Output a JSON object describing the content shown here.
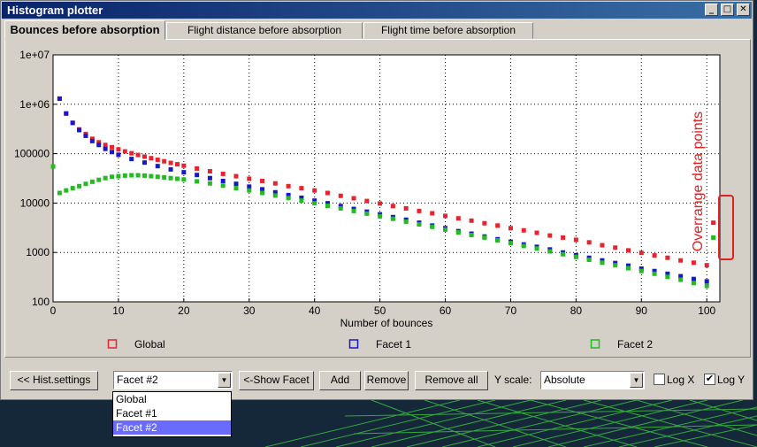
{
  "window": {
    "title": "Histogram plotter",
    "minimize_glyph": "_",
    "maximize_glyph": "□",
    "close_glyph": "✕"
  },
  "tabs": [
    {
      "label": "Bounces before absorption",
      "active": true
    },
    {
      "label": "Flight distance before absorption",
      "active": false
    },
    {
      "label": "Flight time before absorption",
      "active": false
    }
  ],
  "chart_data": {
    "type": "scatter",
    "xlabel": "Number of bounces",
    "ylabel": "",
    "xlim": [
      0,
      102
    ],
    "ylim": [
      100,
      10000000
    ],
    "yscale": "log",
    "grid": true,
    "x_ticks": [
      0,
      10,
      20,
      30,
      40,
      50,
      60,
      70,
      80,
      90,
      100
    ],
    "y_ticks": [
      100,
      1000,
      10000,
      100000,
      1000000,
      10000000
    ],
    "y_tick_labels": [
      "100",
      "1000",
      "10000",
      "100000",
      "1e+06",
      "1e+07"
    ],
    "legend_position": "bottom",
    "series": [
      {
        "name": "Global",
        "color": "#e8232d",
        "values": [
          [
            1,
            1300000
          ],
          [
            2,
            650000
          ],
          [
            3,
            420000
          ],
          [
            4,
            310000
          ],
          [
            5,
            250000
          ],
          [
            6,
            200000
          ],
          [
            7,
            170000
          ],
          [
            8,
            150000
          ],
          [
            9,
            135000
          ],
          [
            10,
            122000
          ],
          [
            11,
            111000
          ],
          [
            12,
            102000
          ],
          [
            13,
            94000
          ],
          [
            14,
            87000
          ],
          [
            15,
            81000
          ],
          [
            16,
            75000
          ],
          [
            17,
            70000
          ],
          [
            18,
            65000
          ],
          [
            19,
            61000
          ],
          [
            20,
            57000
          ],
          [
            22,
            50000
          ],
          [
            24,
            44000
          ],
          [
            26,
            39000
          ],
          [
            28,
            35000
          ],
          [
            30,
            31000
          ],
          [
            32,
            28000
          ],
          [
            34,
            25000
          ],
          [
            36,
            22000
          ],
          [
            38,
            20000
          ],
          [
            40,
            18000
          ],
          [
            42,
            16000
          ],
          [
            44,
            14000
          ],
          [
            46,
            12500
          ],
          [
            48,
            11000
          ],
          [
            50,
            9800
          ],
          [
            52,
            8700
          ],
          [
            54,
            7800
          ],
          [
            56,
            6900
          ],
          [
            58,
            6200
          ],
          [
            60,
            5500
          ],
          [
            62,
            4900
          ],
          [
            64,
            4400
          ],
          [
            66,
            3900
          ],
          [
            68,
            3500
          ],
          [
            70,
            3100
          ],
          [
            72,
            2800
          ],
          [
            74,
            2500
          ],
          [
            76,
            2200
          ],
          [
            78,
            2000
          ],
          [
            80,
            1800
          ],
          [
            82,
            1600
          ],
          [
            84,
            1400
          ],
          [
            86,
            1250
          ],
          [
            88,
            1100
          ],
          [
            90,
            980
          ],
          [
            92,
            870
          ],
          [
            94,
            780
          ],
          [
            96,
            690
          ],
          [
            98,
            620
          ],
          [
            100,
            550
          ],
          [
            101,
            4000
          ]
        ]
      },
      {
        "name": "Facet 1",
        "color": "#1818c8",
        "values": [
          [
            1,
            1300000
          ],
          [
            2,
            650000
          ],
          [
            3,
            420000
          ],
          [
            4,
            300000
          ],
          [
            5,
            230000
          ],
          [
            6,
            180000
          ],
          [
            7,
            150000
          ],
          [
            8,
            125000
          ],
          [
            9,
            108000
          ],
          [
            10,
            95000
          ],
          [
            12,
            78000
          ],
          [
            14,
            66000
          ],
          [
            16,
            56000
          ],
          [
            18,
            48000
          ],
          [
            20,
            42000
          ],
          [
            22,
            37000
          ],
          [
            24,
            32000
          ],
          [
            26,
            28000
          ],
          [
            28,
            24500
          ],
          [
            30,
            21500
          ],
          [
            32,
            19000
          ],
          [
            34,
            16500
          ],
          [
            36,
            14500
          ],
          [
            38,
            12800
          ],
          [
            40,
            11200
          ],
          [
            42,
            9900
          ],
          [
            44,
            8700
          ],
          [
            46,
            7600
          ],
          [
            48,
            6700
          ],
          [
            50,
            5900
          ],
          [
            52,
            5200
          ],
          [
            54,
            4600
          ],
          [
            56,
            4000
          ],
          [
            58,
            3500
          ],
          [
            60,
            3100
          ],
          [
            62,
            2700
          ],
          [
            64,
            2400
          ],
          [
            66,
            2100
          ],
          [
            68,
            1850
          ],
          [
            70,
            1650
          ],
          [
            72,
            1450
          ],
          [
            74,
            1300
          ],
          [
            76,
            1150
          ],
          [
            78,
            1000
          ],
          [
            80,
            880
          ],
          [
            82,
            780
          ],
          [
            84,
            690
          ],
          [
            86,
            610
          ],
          [
            88,
            540
          ],
          [
            90,
            470
          ],
          [
            92,
            420
          ],
          [
            94,
            370
          ],
          [
            96,
            330
          ],
          [
            98,
            290
          ],
          [
            100,
            260
          ]
        ]
      },
      {
        "name": "Facet 2",
        "color": "#22bb22",
        "values": [
          [
            0,
            55000
          ],
          [
            1,
            16000
          ],
          [
            2,
            18000
          ],
          [
            3,
            20000
          ],
          [
            4,
            22000
          ],
          [
            5,
            24500
          ],
          [
            6,
            27000
          ],
          [
            7,
            29500
          ],
          [
            8,
            32000
          ],
          [
            9,
            34000
          ],
          [
            10,
            35000
          ],
          [
            11,
            36000
          ],
          [
            12,
            36500
          ],
          [
            13,
            36500
          ],
          [
            14,
            36000
          ],
          [
            15,
            35000
          ],
          [
            16,
            34000
          ],
          [
            17,
            33000
          ],
          [
            18,
            32000
          ],
          [
            19,
            31000
          ],
          [
            20,
            30000
          ],
          [
            22,
            27500
          ],
          [
            24,
            25000
          ],
          [
            26,
            22500
          ],
          [
            28,
            20000
          ],
          [
            30,
            18000
          ],
          [
            32,
            16000
          ],
          [
            34,
            14200
          ],
          [
            36,
            12600
          ],
          [
            38,
            11200
          ],
          [
            40,
            9900
          ],
          [
            42,
            8800
          ],
          [
            44,
            7800
          ],
          [
            46,
            6900
          ],
          [
            48,
            6100
          ],
          [
            50,
            5400
          ],
          [
            52,
            4800
          ],
          [
            54,
            4200
          ],
          [
            56,
            3700
          ],
          [
            58,
            3300
          ],
          [
            60,
            2900
          ],
          [
            62,
            2550
          ],
          [
            64,
            2250
          ],
          [
            66,
            2000
          ],
          [
            68,
            1750
          ],
          [
            70,
            1550
          ],
          [
            72,
            1350
          ],
          [
            74,
            1200
          ],
          [
            76,
            1050
          ],
          [
            78,
            920
          ],
          [
            80,
            810
          ],
          [
            82,
            710
          ],
          [
            84,
            620
          ],
          [
            86,
            550
          ],
          [
            88,
            480
          ],
          [
            90,
            420
          ],
          [
            92,
            370
          ],
          [
            94,
            320
          ],
          [
            96,
            280
          ],
          [
            98,
            240
          ],
          [
            100,
            210
          ],
          [
            101,
            2000
          ]
        ]
      }
    ],
    "annotation": {
      "text": "Overrange data points",
      "color": "#e02020"
    }
  },
  "controls": {
    "hist_settings_label": "<< Hist.settings",
    "facet_select_value": "Facet #2",
    "show_facet_label": "<-Show Facet",
    "add_label": "Add",
    "remove_label": "Remove",
    "remove_all_label": "Remove all",
    "yscale_label": "Y scale:",
    "yscale_value": "Absolute",
    "logx_label": "Log X",
    "logx_checked": false,
    "logy_label": "Log Y",
    "logy_checked": true,
    "check_glyph": "✔",
    "combo_arrow_glyph": "▼"
  },
  "dropdown_options": [
    {
      "label": "Global",
      "selected": false
    },
    {
      "label": "Facet #1",
      "selected": false
    },
    {
      "label": "Facet #2",
      "selected": true
    }
  ]
}
